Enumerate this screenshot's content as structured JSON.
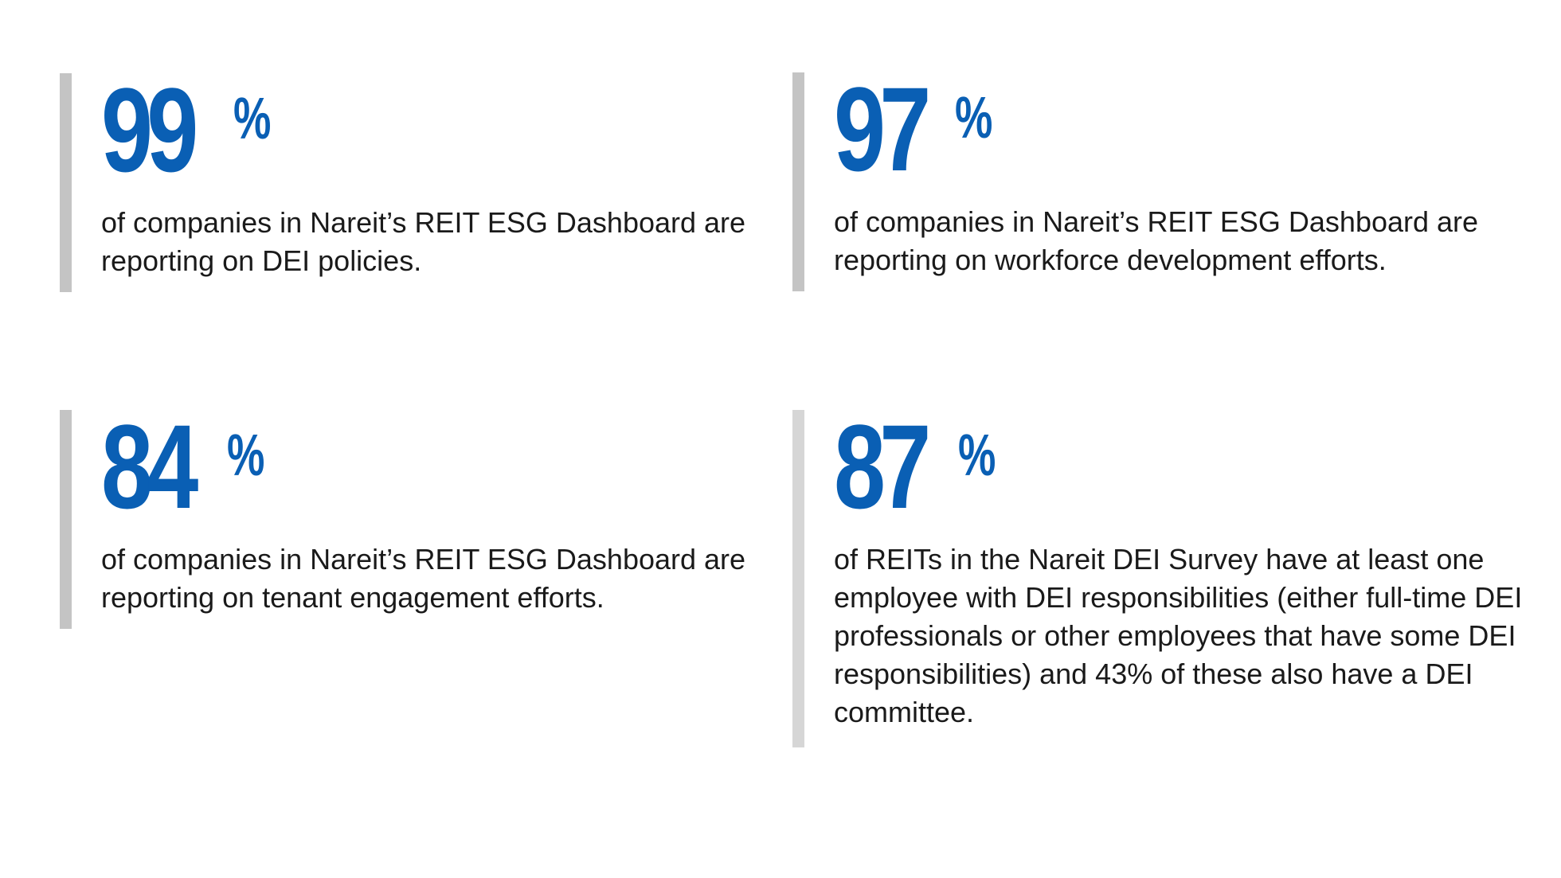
{
  "stats": [
    {
      "number": "99",
      "percent": "%",
      "description": "of companies in Nareit’s REIT ESG Dashboard are reporting on DEI policies."
    },
    {
      "number": "97",
      "percent": "%",
      "description": "of companies in Nareit’s REIT ESG Dashboard are reporting on workforce development efforts."
    },
    {
      "number": "84",
      "percent": "%",
      "description": "of companies in Nareit’s REIT ESG Dashboard are reporting on tenant engagement efforts."
    },
    {
      "number": "87",
      "percent": "%",
      "description": "of REITs in the Nareit DEI Survey have at least one employee with DEI responsibilities (either full-time DEI professionals or other employees that have some DEI responsibilities) and 43% of these also have a DEI committee."
    }
  ],
  "colors": {
    "accent": "#0a5fb4",
    "bar": "#c4c4c4",
    "text": "#1a1a1a"
  }
}
